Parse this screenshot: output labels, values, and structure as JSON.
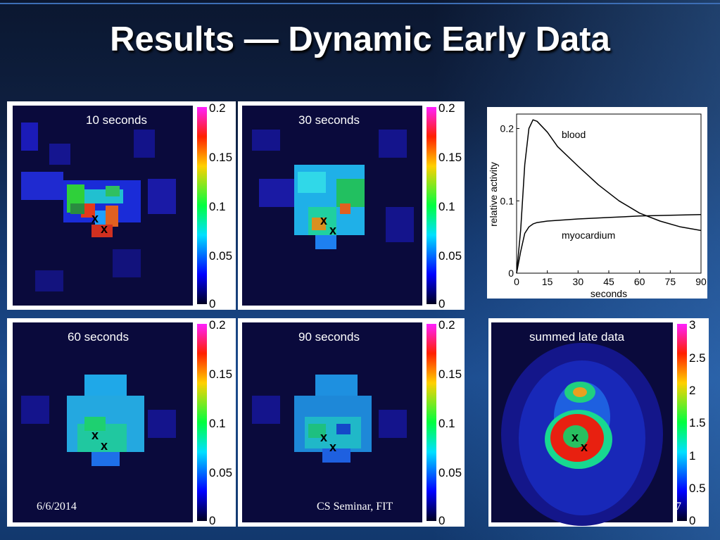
{
  "slide": {
    "title": "Results — Dynamic Early Data",
    "footer_date": "6/6/2014",
    "footer_center": "CS Seminar, FIT",
    "footer_page": "7"
  },
  "panels": [
    {
      "label": "10 seconds",
      "colorbar_ticks": [
        "0.2",
        "0.15",
        "0.1",
        "0.05",
        "0"
      ],
      "markers": [
        "x",
        "x"
      ]
    },
    {
      "label": "30 seconds",
      "colorbar_ticks": [
        "0.2",
        "0.15",
        "0.1",
        "0.05",
        "0"
      ],
      "markers": [
        "x",
        "x"
      ]
    },
    {
      "label": "60 seconds",
      "colorbar_ticks": [
        "0.2",
        "0.15",
        "0.1",
        "0.05",
        "0"
      ],
      "markers": [
        "x",
        "x"
      ]
    },
    {
      "label": "90 seconds",
      "colorbar_ticks": [
        "0.2",
        "0.15",
        "0.1",
        "0.05",
        "0"
      ],
      "markers": [
        "x",
        "x"
      ]
    },
    {
      "label": "summed late data",
      "colorbar_ticks": [
        "3",
        "2.5",
        "2",
        "1.5",
        "1",
        "0.5",
        "0"
      ],
      "markers": [
        "x",
        "x"
      ]
    }
  ],
  "chart_data": {
    "type": "line",
    "xlabel": "seconds",
    "ylabel": "relative activity",
    "xlim": [
      0,
      90
    ],
    "ylim": [
      0,
      0.22
    ],
    "x_ticks": [
      "0",
      "15",
      "30",
      "45",
      "60",
      "75",
      "90"
    ],
    "y_ticks": [
      "0",
      "0.1",
      "0.2"
    ],
    "series": [
      {
        "name": "blood",
        "x": [
          0,
          2,
          4,
          6,
          8,
          10,
          15,
          20,
          30,
          40,
          50,
          60,
          70,
          80,
          90
        ],
        "y": [
          0,
          0.06,
          0.15,
          0.2,
          0.212,
          0.21,
          0.195,
          0.175,
          0.148,
          0.122,
          0.1,
          0.083,
          0.072,
          0.064,
          0.059
        ]
      },
      {
        "name": "myocardium",
        "x": [
          0,
          2,
          4,
          6,
          8,
          10,
          15,
          20,
          30,
          45,
          60,
          75,
          90
        ],
        "y": [
          0,
          0.03,
          0.055,
          0.064,
          0.068,
          0.07,
          0.072,
          0.073,
          0.075,
          0.077,
          0.079,
          0.08,
          0.081
        ]
      }
    ],
    "grid": false,
    "legend": "inline labels"
  }
}
